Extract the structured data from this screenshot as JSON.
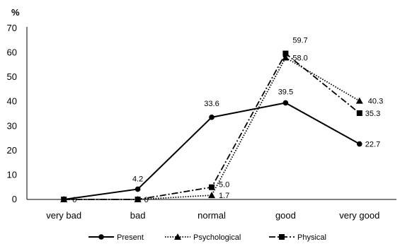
{
  "chart_data": {
    "type": "line",
    "title": "",
    "xlabel": "",
    "ylabel": "%",
    "ylim": [
      0,
      70
    ],
    "yticks": [
      0,
      10,
      20,
      30,
      40,
      50,
      60,
      70
    ],
    "grid": false,
    "legend_position": "bottom",
    "categories": [
      "very bad",
      "bad",
      "normal",
      "good",
      "very good"
    ],
    "series": [
      {
        "name": "Present",
        "values": [
          0,
          4.2,
          33.6,
          39.5,
          22.7
        ],
        "marker": "circle",
        "line_style": "solid",
        "color": "#000000"
      },
      {
        "name": "Psychological",
        "values": [
          0,
          0,
          1.7,
          58.0,
          40.3
        ],
        "marker": "triangle",
        "line_style": "dotted",
        "color": "#000000"
      },
      {
        "name": "Physical",
        "values": [
          0,
          0,
          5.0,
          59.7,
          35.3
        ],
        "marker": "square",
        "line_style": "dash-dot",
        "color": "#000000"
      }
    ],
    "data_labels": [
      {
        "series": 0,
        "index": 1,
        "text": "4.2"
      },
      {
        "series": 0,
        "index": 2,
        "text": "33.6"
      },
      {
        "series": 0,
        "index": 3,
        "text": "39.5"
      },
      {
        "series": 0,
        "index": 4,
        "text": "22.7"
      },
      {
        "series": 1,
        "index": 1,
        "text": "0"
      },
      {
        "series": 1,
        "index": 2,
        "text": "1.7"
      },
      {
        "series": 1,
        "index": 3,
        "text": "58.0"
      },
      {
        "series": 1,
        "index": 4,
        "text": "40.3"
      },
      {
        "series": 2,
        "index": 0,
        "text": "0"
      },
      {
        "series": 2,
        "index": 2,
        "text": "5.0"
      },
      {
        "series": 2,
        "index": 3,
        "text": "59.7"
      },
      {
        "series": 2,
        "index": 4,
        "text": "35.3"
      }
    ]
  }
}
